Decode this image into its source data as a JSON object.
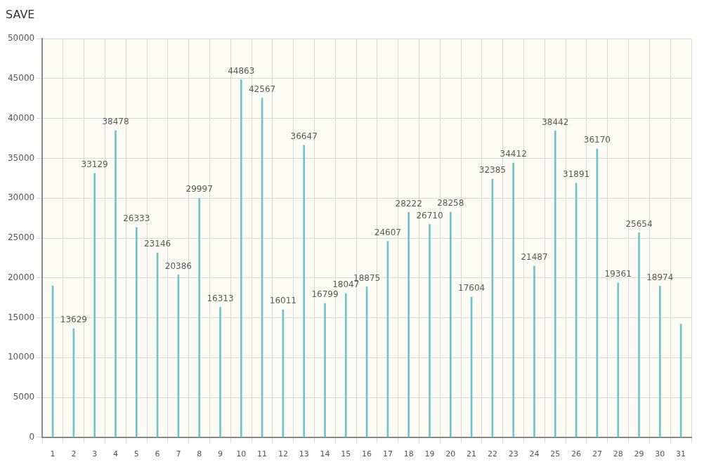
{
  "chart_data": {
    "type": "bar",
    "title": "SAVE",
    "categories": [
      "1",
      "2",
      "3",
      "4",
      "5",
      "6",
      "7",
      "8",
      "9",
      "10",
      "11",
      "12",
      "13",
      "14",
      "15",
      "16",
      "17",
      "18",
      "19",
      "20",
      "21",
      "22",
      "23",
      "24",
      "25",
      "26",
      "27",
      "28",
      "29",
      "30",
      "31"
    ],
    "values": [
      19000,
      13629,
      33129,
      38478,
      26333,
      23146,
      20386,
      29997,
      16313,
      44863,
      42567,
      16011,
      36647,
      16799,
      18047,
      18875,
      24607,
      28222,
      26710,
      28258,
      17604,
      32385,
      34412,
      21487,
      38442,
      31891,
      36170,
      19361,
      25654,
      18974,
      14200
    ],
    "value_labels": [
      null,
      "13629",
      "33129",
      "38478",
      "26333",
      "23146",
      "20386",
      "29997",
      "16313",
      "44863",
      "42567",
      "16011",
      "36647",
      "16799",
      "18047",
      "18875",
      "24607",
      "28222",
      "26710",
      "28258",
      "17604",
      "32385",
      "34412",
      "21487",
      "38442",
      "31891",
      "36170",
      "19361",
      "25654",
      "18974",
      null
    ],
    "color": "#6fc3cc",
    "ylim": [
      0,
      50000
    ],
    "yticks": [
      0,
      5000,
      10000,
      15000,
      20000,
      25000,
      30000,
      35000,
      40000,
      45000,
      50000
    ],
    "grid": true
  }
}
